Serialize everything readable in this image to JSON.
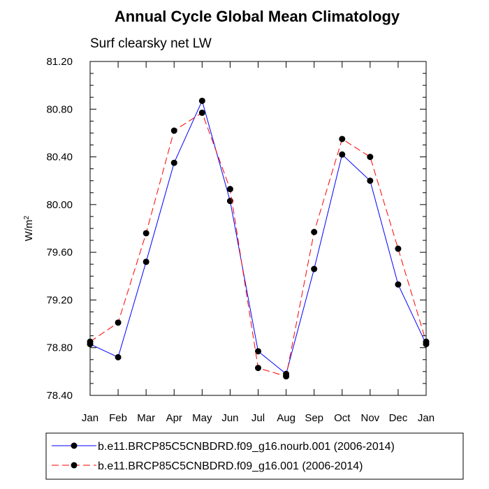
{
  "chart_data": {
    "type": "line",
    "title": "Annual Cycle Global Mean Climatology",
    "subtitle": "Surf clearsky net LW",
    "xlabel": "",
    "ylabel": "W/m",
    "ylabel_superscript": "2",
    "categories": [
      "Jan",
      "Feb",
      "Mar",
      "Apr",
      "May",
      "Jun",
      "Jul",
      "Aug",
      "Sep",
      "Oct",
      "Nov",
      "Dec",
      "Jan"
    ],
    "ylim": [
      78.4,
      81.2
    ],
    "yticks": [
      78.4,
      78.8,
      79.2,
      79.6,
      80.0,
      80.4,
      80.8,
      81.2
    ],
    "ytick_labels": [
      "78.40",
      "78.80",
      "79.20",
      "79.60",
      "80.00",
      "80.40",
      "80.80",
      "81.20"
    ],
    "series": [
      {
        "name": "b.e11.BRCP85C5CNBDRD.f09_g16.nourb.001 (2006-2014)",
        "color": "#0000ff",
        "dash": "solid",
        "values": [
          78.83,
          78.72,
          79.52,
          80.35,
          80.87,
          80.03,
          78.77,
          78.58,
          79.46,
          80.42,
          80.2,
          79.33,
          78.83
        ]
      },
      {
        "name": "b.e11.BRCP85C5CNBDRD.f09_g16.001 (2006-2014)",
        "color": "#ff0000",
        "dash": "dashed",
        "values": [
          78.85,
          79.01,
          79.76,
          80.62,
          80.77,
          80.13,
          78.63,
          78.56,
          79.77,
          80.55,
          80.4,
          79.63,
          78.85
        ]
      }
    ],
    "grid": false,
    "legend_position": "bottom"
  }
}
